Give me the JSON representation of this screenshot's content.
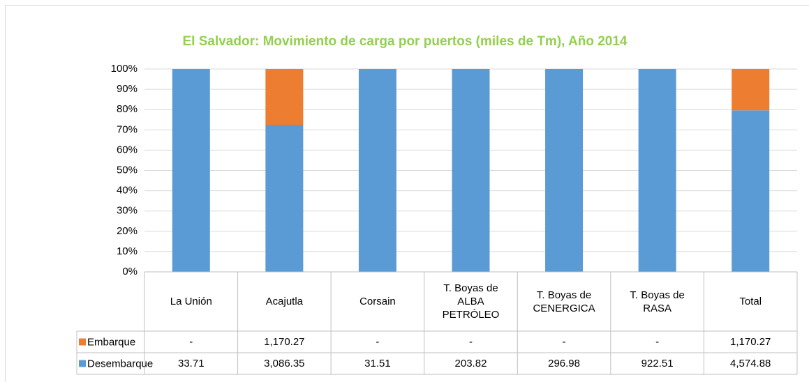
{
  "chart_data": {
    "type": "bar",
    "stacked": "percent",
    "title": "El Salvador:  Movimiento de carga por puertos (miles de Tm), Año 2014",
    "categories": [
      "La Unión",
      "Acajutla",
      "Corsain",
      "T. Boyas de\nALBA\nPETRÓLEO",
      "T. Boyas de\nCENERGICA",
      "T. Boyas de\nRASA",
      "Total"
    ],
    "series": [
      {
        "name": "Embarque",
        "color": "#ed7d31",
        "values": [
          null,
          1170.27,
          null,
          null,
          null,
          null,
          1170.27
        ],
        "value_labels": [
          "-",
          "1,170.27",
          "-",
          "-",
          "-",
          "-",
          "1,170.27"
        ]
      },
      {
        "name": "Desembarque",
        "color": "#5b9bd5",
        "values": [
          33.71,
          3086.35,
          31.51,
          203.82,
          296.98,
          922.51,
          4574.88
        ],
        "value_labels": [
          "33.71",
          "3,086.35",
          "31.51",
          "203.82",
          "296.98",
          "922.51",
          "4,574.88"
        ]
      }
    ],
    "ylim": [
      0,
      100
    ],
    "yticks": [
      {
        "value": 0,
        "label": "0%"
      },
      {
        "value": 10,
        "label": "10%"
      },
      {
        "value": 20,
        "label": "20%"
      },
      {
        "value": 30,
        "label": "30%"
      },
      {
        "value": 40,
        "label": "40%"
      },
      {
        "value": 50,
        "label": "50%"
      },
      {
        "value": 60,
        "label": "60%"
      },
      {
        "value": 70,
        "label": "70%"
      },
      {
        "value": 80,
        "label": "80%"
      },
      {
        "value": 90,
        "label": "90%"
      },
      {
        "value": 100,
        "label": "100%"
      }
    ],
    "grid": true,
    "title_color": "#92d050"
  }
}
